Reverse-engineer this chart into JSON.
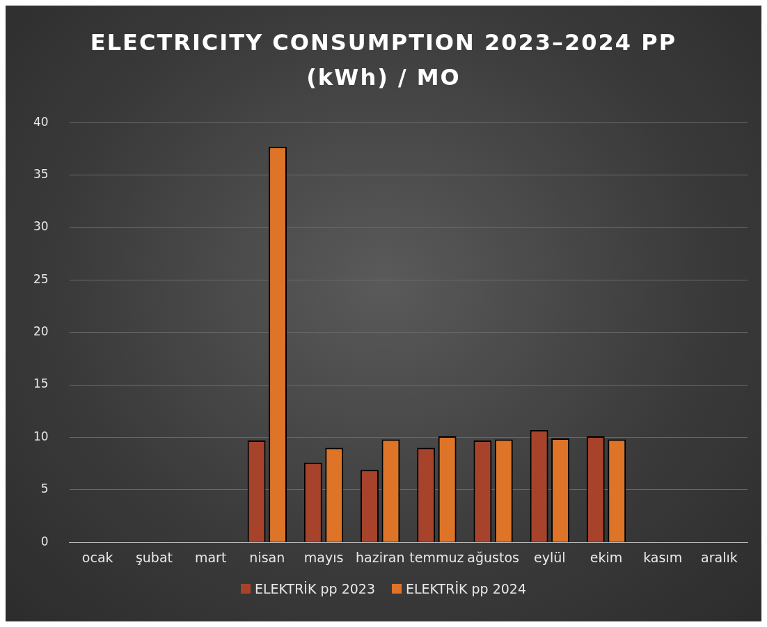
{
  "chart_data": {
    "type": "bar",
    "title": "ELECTRICITY CONSUMPTION 2023–2024 PP (kWh) / MO",
    "categories": [
      "ocak",
      "şubat",
      "mart",
      "nisan",
      "mayıs",
      "haziran",
      "temmuz",
      "ağustos",
      "eylül",
      "ekim",
      "kasım",
      "aralık"
    ],
    "series": [
      {
        "name": "ELEKTRİK pp 2023",
        "color": "#a8432b",
        "values": [
          0,
          0,
          0,
          9.7,
          7.6,
          6.9,
          9.0,
          9.7,
          10.7,
          10.1,
          0,
          0
        ]
      },
      {
        "name": "ELEKTRİK pp 2024",
        "color": "#dd7428",
        "values": [
          0,
          0,
          0,
          37.7,
          9.0,
          9.8,
          10.1,
          9.8,
          9.9,
          9.8,
          0,
          0
        ]
      }
    ],
    "ylim": [
      0,
      40
    ],
    "yticks": [
      0,
      5,
      10,
      15,
      20,
      25,
      30,
      35,
      40
    ],
    "grid": "y",
    "legend": "bottom"
  }
}
